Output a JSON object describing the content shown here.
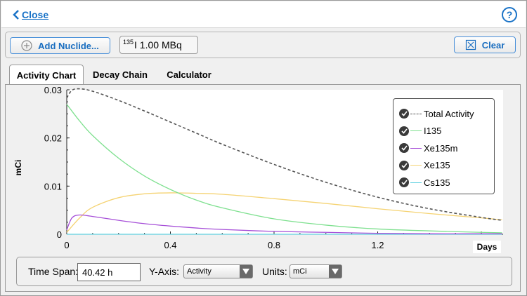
{
  "topbar": {
    "close_label": "Close",
    "help_label": "?"
  },
  "toolbar": {
    "add_label": "Add Nuclide...",
    "nuclide_mass": "135",
    "nuclide_value": "I 1.00 MBq",
    "clear_label": "Clear"
  },
  "tabs": [
    {
      "label": "Activity Chart",
      "active": true
    },
    {
      "label": "Decay Chain",
      "active": false
    },
    {
      "label": "Calculator",
      "active": false
    }
  ],
  "chart_data": {
    "type": "line",
    "ylabel": "mCi",
    "xlabel": "Days",
    "xlim": [
      0,
      1.684
    ],
    "ylim": [
      0,
      0.03
    ],
    "xticks": [
      "0",
      "0.4",
      "0.8",
      "1.2",
      "1.6"
    ],
    "yticks": [
      "0",
      "0.01",
      "0.02",
      "0.03"
    ],
    "legend_position": "top-right",
    "series": [
      {
        "name": "Total Activity",
        "color": "#555555",
        "dashed": true,
        "x": [
          0,
          0.02,
          0.05,
          0.1,
          0.2,
          0.3,
          0.4,
          0.5,
          0.6,
          0.8,
          1.0,
          1.2,
          1.4,
          1.6,
          1.68
        ],
        "values": [
          0.0283,
          0.0299,
          0.0302,
          0.0297,
          0.0278,
          0.0256,
          0.0233,
          0.021,
          0.0187,
          0.0145,
          0.0108,
          0.0077,
          0.0053,
          0.0035,
          0.0029
        ]
      },
      {
        "name": "I135",
        "color": "#7ee08f",
        "dashed": false,
        "x": [
          0,
          0.05,
          0.1,
          0.2,
          0.3,
          0.4,
          0.5,
          0.6,
          0.8,
          1.0,
          1.2,
          1.4,
          1.6,
          1.68
        ],
        "values": [
          0.027,
          0.0235,
          0.0205,
          0.0158,
          0.0121,
          0.0093,
          0.0071,
          0.0055,
          0.0032,
          0.0019,
          0.0011,
          0.0007,
          0.0004,
          0.0003
        ]
      },
      {
        "name": "Xe135m",
        "color": "#a64fd8",
        "dashed": false,
        "x": [
          0,
          0.02,
          0.05,
          0.1,
          0.2,
          0.3,
          0.4,
          0.5,
          0.6,
          0.8,
          1.0,
          1.2,
          1.4,
          1.6,
          1.68
        ],
        "values": [
          0.0009,
          0.0034,
          0.004,
          0.0037,
          0.0029,
          0.0022,
          0.0017,
          0.0013,
          0.001,
          0.0006,
          0.0004,
          0.0002,
          0.0001,
          0.0001,
          0.0001
        ]
      },
      {
        "name": "Xe135",
        "color": "#f5d373",
        "dashed": false,
        "x": [
          0,
          0.05,
          0.1,
          0.2,
          0.3,
          0.4,
          0.5,
          0.6,
          0.8,
          1.0,
          1.2,
          1.4,
          1.6,
          1.68
        ],
        "values": [
          0.0004,
          0.0034,
          0.0056,
          0.0076,
          0.0084,
          0.0086,
          0.0085,
          0.0083,
          0.0074,
          0.0064,
          0.0053,
          0.0043,
          0.0034,
          0.003
        ]
      },
      {
        "name": "Cs135",
        "color": "#5fd0e0",
        "dashed": false,
        "x": [
          0,
          0.4,
          0.8,
          1.2,
          1.68
        ],
        "values": [
          0,
          2e-07,
          4e-07,
          5e-07,
          6e-07
        ]
      }
    ]
  },
  "controls": {
    "timespan_label": "Time Span:",
    "timespan_value": "40.42 h",
    "yaxis_label": "Y-Axis:",
    "yaxis_value": "Activity",
    "units_label": "Units:",
    "units_value": "mCi"
  }
}
